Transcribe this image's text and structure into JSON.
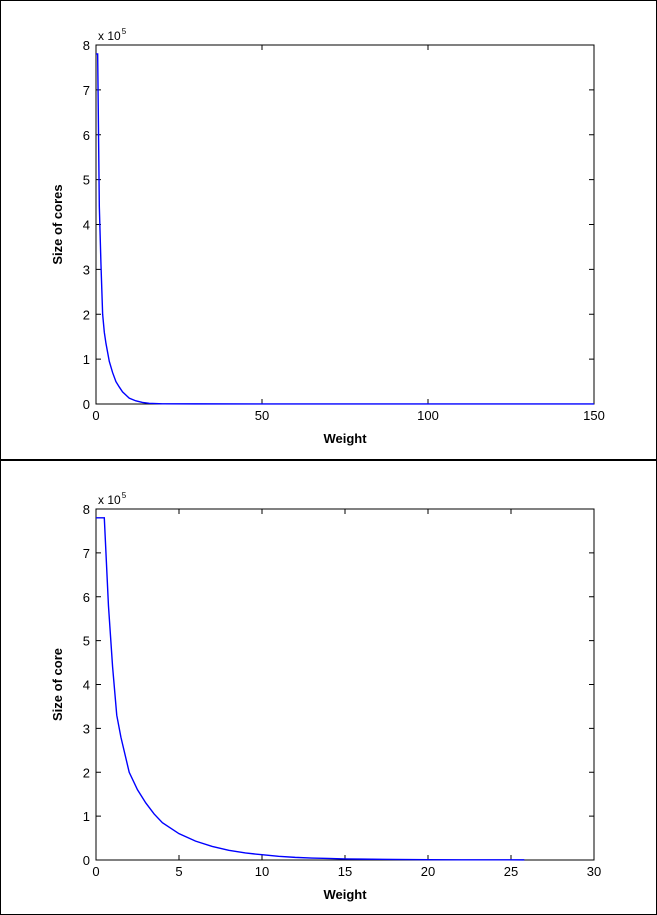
{
  "chart_data": [
    {
      "type": "line",
      "title": "",
      "xlabel": "Weight",
      "ylabel": "Size of cores",
      "y_multiplier_base": "x 10",
      "y_multiplier_exp": "5",
      "xlim": [
        0,
        150
      ],
      "ylim": [
        0,
        8
      ],
      "xticks": [
        "0",
        "50",
        "100",
        "150"
      ],
      "yticks": [
        "0",
        "1",
        "2",
        "3",
        "4",
        "5",
        "6",
        "7",
        "8"
      ],
      "grid": false,
      "line_color": "#0000ff",
      "series": [
        {
          "x": [
            0,
            0.5,
            1,
            1.5,
            2,
            2.5,
            3,
            4,
            5,
            6,
            7,
            8,
            9,
            10,
            12,
            14,
            16,
            20,
            30,
            50,
            100,
            150
          ],
          "values": [
            7.8,
            7.8,
            4.4,
            3.1,
            2.0,
            1.6,
            1.35,
            0.95,
            0.7,
            0.5,
            0.38,
            0.27,
            0.2,
            0.13,
            0.07,
            0.035,
            0.015,
            0.005,
            0.003,
            0.002,
            0.001,
            0.001
          ]
        }
      ]
    },
    {
      "type": "line",
      "title": "",
      "xlabel": "Weight",
      "ylabel": "Size of core",
      "y_multiplier_base": "x 10",
      "y_multiplier_exp": "5",
      "xlim": [
        0,
        30
      ],
      "ylim": [
        0,
        8
      ],
      "xticks": [
        "0",
        "5",
        "10",
        "15",
        "20",
        "25",
        "30"
      ],
      "yticks": [
        "0",
        "1",
        "2",
        "3",
        "4",
        "5",
        "6",
        "7",
        "8"
      ],
      "grid": false,
      "line_color": "#0000ff",
      "series": [
        {
          "x": [
            0,
            0.5,
            0.75,
            1,
            1.25,
            1.5,
            2,
            2.5,
            3,
            3.5,
            4,
            5,
            6,
            7,
            8,
            9,
            10,
            11,
            12,
            13,
            14,
            15,
            16,
            18,
            20,
            22,
            24,
            25.8
          ],
          "values": [
            7.8,
            7.8,
            5.8,
            4.4,
            3.3,
            2.8,
            2.0,
            1.6,
            1.3,
            1.05,
            0.85,
            0.6,
            0.43,
            0.31,
            0.22,
            0.16,
            0.12,
            0.085,
            0.06,
            0.045,
            0.035,
            0.025,
            0.02,
            0.012,
            0.008,
            0.005,
            0.004,
            0.003
          ]
        }
      ]
    }
  ]
}
